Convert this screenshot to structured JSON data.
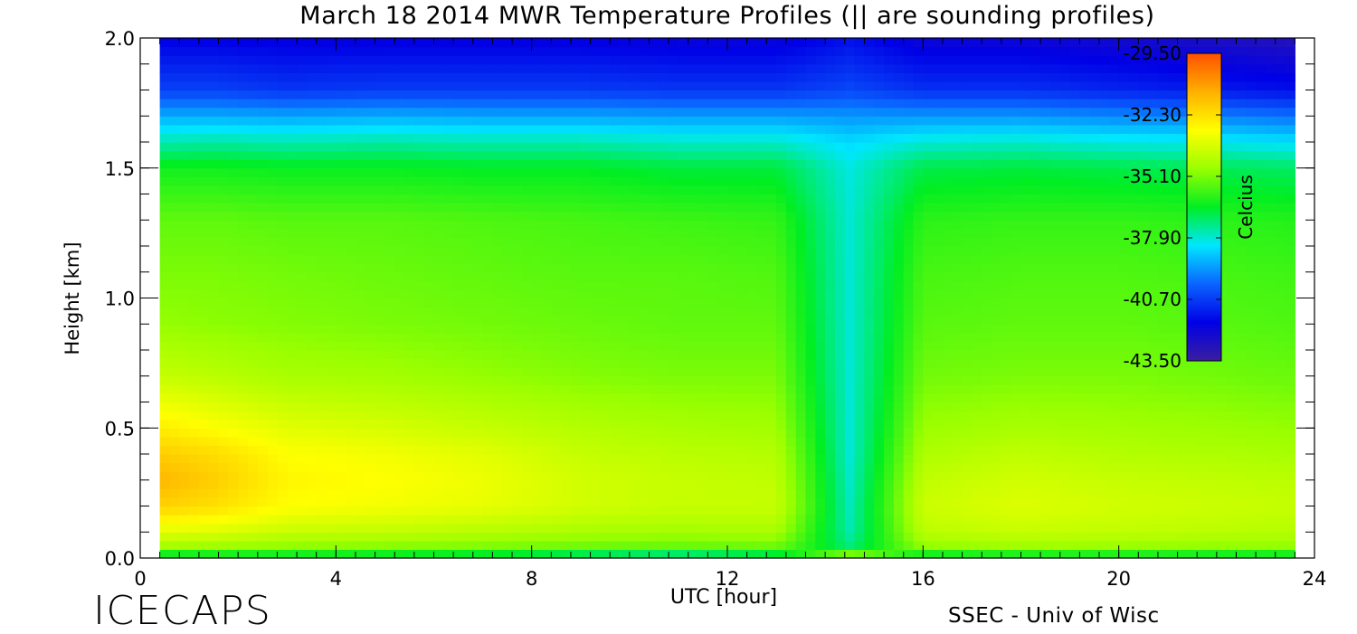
{
  "chart_data": {
    "type": "heatmap",
    "title": "March 18 2014 MWR Temperature Profiles (|| are sounding profiles)",
    "xlabel": "UTC [hour]",
    "ylabel": "Height [km]",
    "xlim": [
      0,
      24
    ],
    "ylim": [
      0.0,
      2.0
    ],
    "x_ticks": [
      "0",
      "4",
      "8",
      "12",
      "16",
      "20",
      "24"
    ],
    "y_ticks": [
      "0.0",
      "0.5",
      "1.0",
      "1.5",
      "2.0"
    ],
    "data_x_range": [
      0.4,
      23.6
    ],
    "colorbar": {
      "label": "Celcius",
      "ticks": [
        "-29.50",
        "-32.30",
        "-35.10",
        "-37.90",
        "-40.70",
        "-43.50"
      ],
      "range": [
        -43.5,
        -29.5
      ]
    },
    "profile_levels_km": [
      0.0,
      0.02,
      0.05,
      0.1,
      0.2,
      0.3,
      0.4,
      0.5,
      0.7,
      0.9,
      1.1,
      1.3,
      1.5,
      1.6,
      1.7,
      1.8,
      2.0
    ],
    "profiles": [
      {
        "utc": 0.4,
        "temps": [
          -35.2,
          -36.5,
          -34.5,
          -33.5,
          -32.0,
          -31.4,
          -31.9,
          -32.6,
          -34.0,
          -34.8,
          -35.1,
          -35.4,
          -36.3,
          -37.6,
          -39.0,
          -40.6,
          -41.8
        ]
      },
      {
        "utc": 1.5,
        "temps": [
          -35.2,
          -36.4,
          -34.6,
          -33.6,
          -32.3,
          -31.9,
          -32.2,
          -33.0,
          -34.2,
          -34.9,
          -35.1,
          -35.4,
          -36.3,
          -37.5,
          -39.0,
          -40.6,
          -41.8
        ]
      },
      {
        "utc": 3.0,
        "temps": [
          -35.4,
          -36.4,
          -34.8,
          -34.0,
          -33.0,
          -32.8,
          -33.0,
          -33.5,
          -34.5,
          -35.0,
          -35.2,
          -35.5,
          -36.4,
          -37.6,
          -39.1,
          -40.8,
          -41.9
        ]
      },
      {
        "utc": 5.0,
        "temps": [
          -35.5,
          -36.5,
          -34.9,
          -34.1,
          -33.2,
          -33.0,
          -33.2,
          -33.7,
          -34.6,
          -35.1,
          -35.3,
          -35.5,
          -36.4,
          -37.5,
          -39.0,
          -40.7,
          -41.9
        ]
      },
      {
        "utc": 7.0,
        "temps": [
          -35.6,
          -36.6,
          -35.0,
          -34.3,
          -33.4,
          -33.3,
          -33.5,
          -34.0,
          -34.8,
          -35.2,
          -35.4,
          -35.6,
          -36.5,
          -37.6,
          -39.1,
          -40.7,
          -41.9
        ]
      },
      {
        "utc": 9.0,
        "temps": [
          -35.8,
          -37.0,
          -35.2,
          -34.5,
          -33.8,
          -33.8,
          -34.0,
          -34.3,
          -35.0,
          -35.3,
          -35.5,
          -35.7,
          -36.5,
          -37.6,
          -39.1,
          -40.7,
          -41.9
        ]
      },
      {
        "utc": 11.0,
        "temps": [
          -35.9,
          -37.3,
          -35.3,
          -34.6,
          -34.0,
          -34.0,
          -34.2,
          -34.5,
          -35.1,
          -35.4,
          -35.5,
          -35.8,
          -36.7,
          -37.8,
          -39.2,
          -40.8,
          -42.0
        ]
      },
      {
        "utc": 13.0,
        "temps": [
          -35.7,
          -36.8,
          -35.2,
          -34.5,
          -34.0,
          -34.1,
          -34.3,
          -34.6,
          -35.1,
          -35.4,
          -35.6,
          -35.9,
          -36.7,
          -37.8,
          -39.2,
          -40.8,
          -42.0
        ]
      },
      {
        "utc": 14.5,
        "temps": [
          -31.0,
          -36.0,
          -37.2,
          -37.6,
          -37.7,
          -37.8,
          -37.9,
          -37.9,
          -37.9,
          -37.9,
          -37.9,
          -37.9,
          -38.0,
          -38.4,
          -39.3,
          -40.5,
          -41.5
        ]
      },
      {
        "utc": 16.0,
        "temps": [
          -35.3,
          -36.4,
          -34.8,
          -34.2,
          -33.9,
          -34.1,
          -34.4,
          -34.7,
          -35.2,
          -35.5,
          -35.7,
          -36.0,
          -36.8,
          -37.9,
          -39.3,
          -40.9,
          -42.1
        ]
      },
      {
        "utc": 18.0,
        "temps": [
          -35.2,
          -36.3,
          -34.6,
          -34.0,
          -33.6,
          -33.8,
          -34.1,
          -34.5,
          -35.1,
          -35.4,
          -35.6,
          -35.9,
          -36.7,
          -37.8,
          -39.3,
          -40.9,
          -42.1
        ]
      },
      {
        "utc": 20.0,
        "temps": [
          -35.2,
          -36.3,
          -34.7,
          -34.1,
          -33.8,
          -34.0,
          -34.3,
          -34.6,
          -35.1,
          -35.4,
          -35.6,
          -35.9,
          -36.8,
          -38.0,
          -39.5,
          -41.1,
          -42.3
        ]
      },
      {
        "utc": 22.0,
        "temps": [
          -35.3,
          -36.4,
          -34.8,
          -34.2,
          -33.9,
          -34.1,
          -34.4,
          -34.7,
          -35.2,
          -35.5,
          -35.7,
          -36.0,
          -36.9,
          -38.1,
          -39.6,
          -41.3,
          -42.6
        ]
      },
      {
        "utc": 23.6,
        "temps": [
          -35.3,
          -36.4,
          -34.8,
          -34.3,
          -34.0,
          -34.2,
          -34.5,
          -34.8,
          -35.3,
          -35.6,
          -35.8,
          -36.1,
          -37.0,
          -38.3,
          -39.8,
          -41.5,
          -42.8
        ]
      }
    ]
  },
  "footer": {
    "logo_text": "ICECAPS",
    "credit_text": "SSEC - Univ of Wisc"
  },
  "colors": {
    "colormap": [
      "#3a1ea0",
      "#0000e6",
      "#0a64ff",
      "#00e6ff",
      "#00ee22",
      "#9aff00",
      "#ffff00",
      "#ffb000",
      "#ff5000"
    ],
    "axis": "#000000",
    "background": "#ffffff"
  }
}
